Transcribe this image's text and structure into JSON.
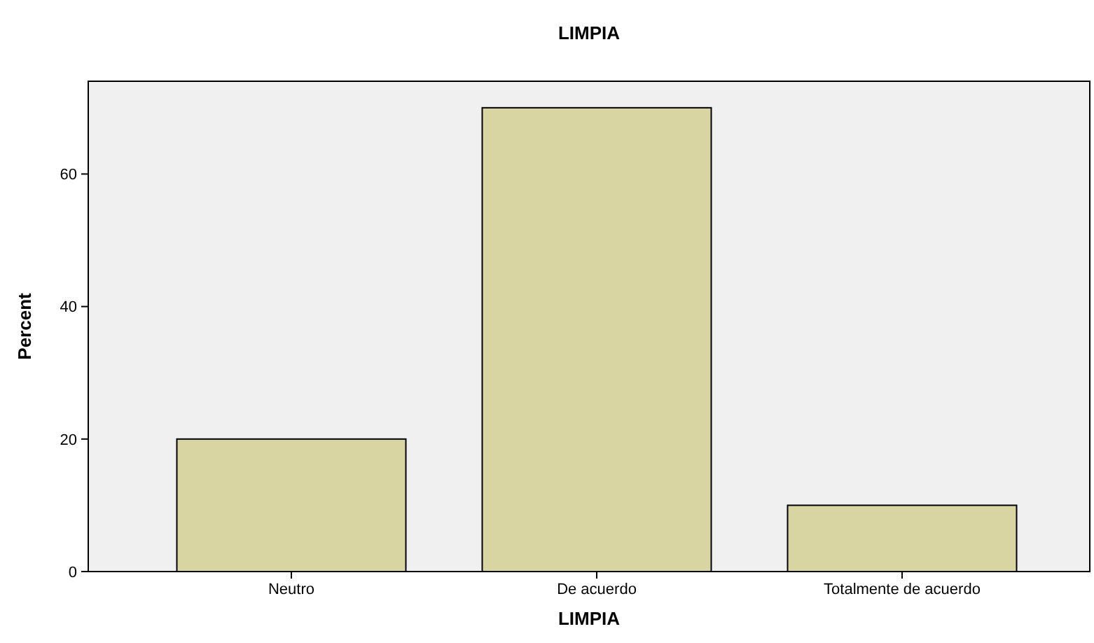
{
  "chart_data": {
    "type": "bar",
    "title": "LIMPIA",
    "xlabel": "LIMPIA",
    "ylabel": "Percent",
    "categories": [
      "Neutro",
      "De acuerdo",
      "Totalmente de acuerdo"
    ],
    "values": [
      20,
      70,
      10
    ],
    "color": "#d9d5a3",
    "ylim": [
      0,
      74
    ],
    "yticks": [
      0,
      20,
      40,
      60
    ],
    "grid": false
  }
}
